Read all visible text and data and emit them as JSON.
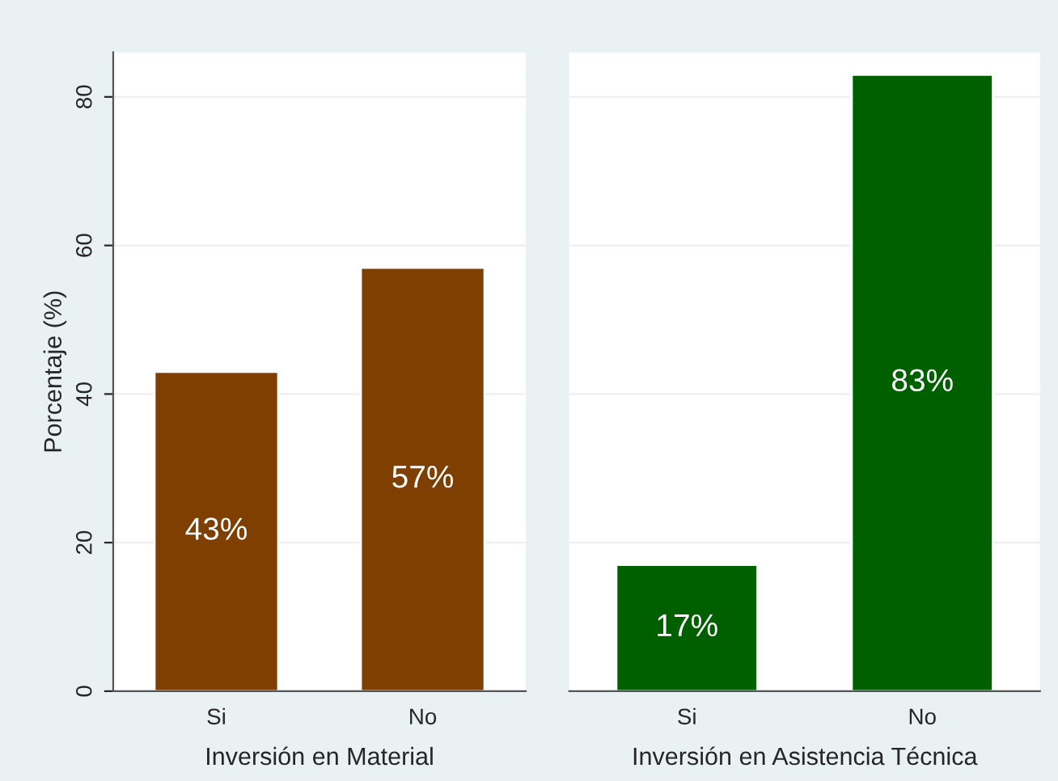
{
  "chart_data": [
    {
      "type": "bar",
      "xlabel": "Inversión en Material",
      "ylabel": "Porcentaje (%)",
      "categories": [
        "Si",
        "No"
      ],
      "values": [
        43,
        57
      ],
      "value_labels": [
        "43%",
        "57%"
      ],
      "color": "#7f3f00",
      "ylim": [
        0,
        86
      ],
      "yticks": [
        0,
        20,
        40,
        60,
        80
      ],
      "grid": "y"
    },
    {
      "type": "bar",
      "xlabel": "Inversión en Asistencia Técnica",
      "categories": [
        "Si",
        "No"
      ],
      "values": [
        17,
        83
      ],
      "value_labels": [
        "17%",
        "83%"
      ],
      "color": "#006000",
      "ylim": [
        0,
        86
      ],
      "yticks": [
        0,
        20,
        40,
        60,
        80
      ],
      "grid": "y",
      "tick_labels": "x"
    }
  ]
}
